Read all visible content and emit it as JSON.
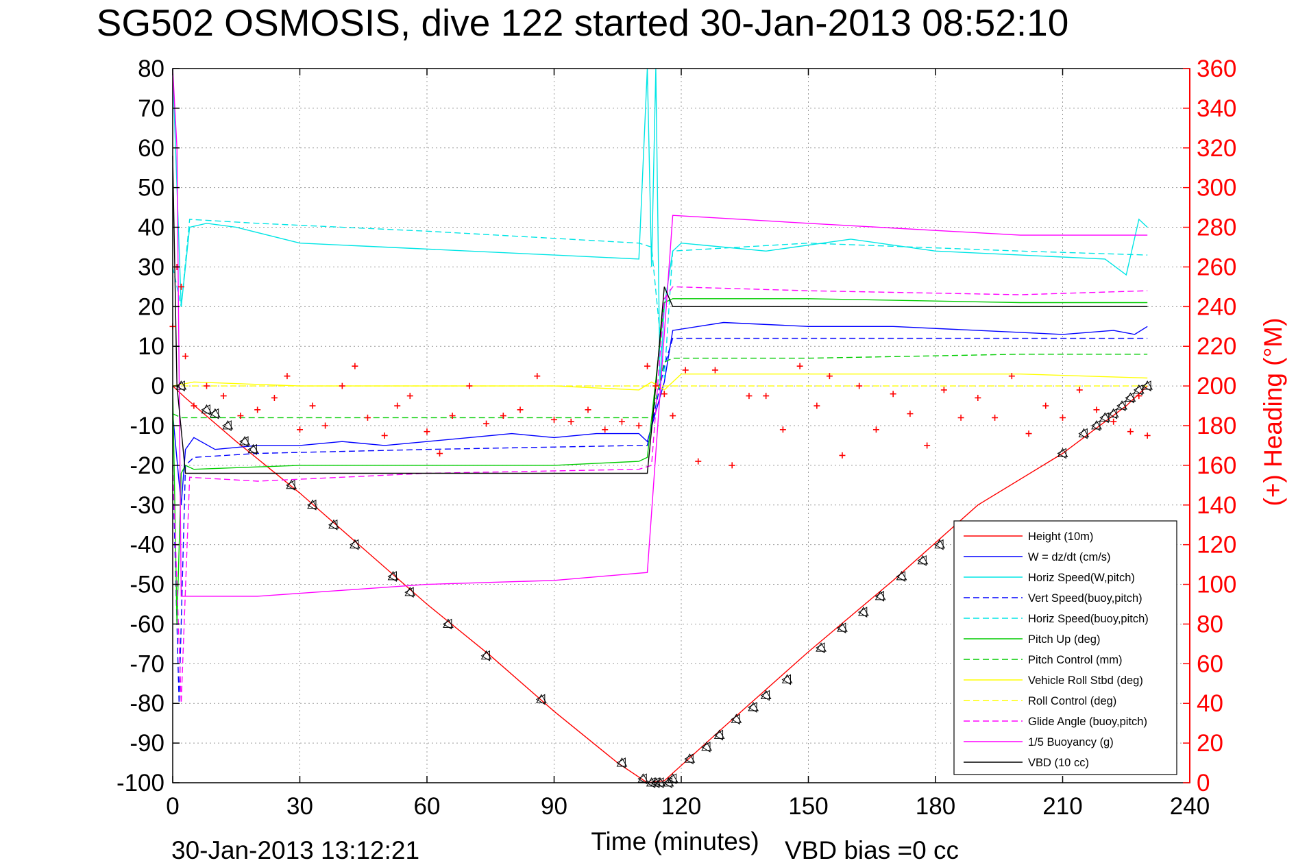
{
  "chart_data": {
    "type": "line",
    "title": "SG502 OSMOSIS, dive 122 started 30-Jan-2013 08:52:10",
    "xlabel": "Time (minutes)",
    "ylabel": "",
    "y2label": "(+) Heading (°M)",
    "xlim": [
      0,
      240
    ],
    "ylim": [
      -100,
      80
    ],
    "y2lim": [
      0,
      360
    ],
    "x_ticks": [
      0,
      30,
      60,
      90,
      120,
      150,
      180,
      210,
      240
    ],
    "y_ticks": [
      80,
      70,
      60,
      50,
      40,
      30,
      20,
      10,
      0,
      -10,
      -20,
      -30,
      -40,
      -50,
      -60,
      -70,
      -80,
      -90,
      -100
    ],
    "y2_ticks": [
      360,
      340,
      320,
      300,
      280,
      260,
      240,
      220,
      200,
      180,
      160,
      140,
      120,
      100,
      80,
      60,
      40,
      20,
      0
    ],
    "grid": true,
    "legend_position": "bottom-right",
    "footer_left": "30-Jan-2013 13:12:21",
    "footer_right": "VBD bias =0 cc",
    "series": [
      {
        "name": "Height (10m)",
        "color": "#ff0000",
        "style": "solid",
        "x": [
          0,
          1,
          3,
          15,
          30,
          45,
          60,
          75,
          90,
          105,
          112,
          116,
          130,
          150,
          170,
          190,
          210,
          225,
          230
        ],
        "y": [
          0,
          -1,
          -3,
          -14,
          -27,
          -41,
          -55,
          -68,
          -82,
          -95,
          -100,
          -99.5,
          -86,
          -67,
          -49,
          -30,
          -17,
          -5,
          0
        ]
      },
      {
        "name": "W = dz/dt (cm/s)",
        "color": "#0000ff",
        "style": "solid",
        "x": [
          0,
          2,
          3,
          5,
          10,
          20,
          30,
          40,
          50,
          60,
          70,
          80,
          90,
          100,
          110,
          112,
          116,
          118,
          130,
          150,
          170,
          190,
          210,
          222,
          227,
          230
        ],
        "y": [
          -7,
          -30,
          -16,
          -13,
          -16,
          -15,
          -15,
          -14,
          -15,
          -14,
          -13,
          -12,
          -13,
          -12,
          -12,
          -14,
          1,
          14,
          16,
          15,
          15,
          14,
          13,
          14,
          13,
          15
        ]
      },
      {
        "name": "Horiz Speed(W,pitch)",
        "color": "#00e5e5",
        "style": "solid",
        "x": [
          0,
          2,
          4,
          8,
          15,
          30,
          50,
          70,
          90,
          110,
          112,
          113,
          114,
          115,
          116,
          118,
          120,
          140,
          160,
          180,
          200,
          220,
          225,
          228,
          230
        ],
        "y": [
          80,
          20,
          40,
          41,
          40,
          36,
          35,
          34,
          33,
          32,
          82,
          30,
          82,
          0,
          20,
          34,
          36,
          34,
          37,
          34,
          33,
          32,
          28,
          42,
          40
        ]
      },
      {
        "name": "Vert Speed(buoy,pitch)",
        "color": "#0000ff",
        "style": "dashed",
        "x": [
          0,
          1.5,
          3,
          5,
          20,
          60,
          110,
          112,
          116,
          118,
          150,
          200,
          230
        ],
        "y": [
          -20,
          -80,
          -20,
          -18,
          -17,
          -16,
          -15,
          -15,
          5,
          12,
          12,
          12,
          12
        ]
      },
      {
        "name": "Horiz Speed(buoy,pitch)",
        "color": "#00e5e5",
        "style": "dashed",
        "x": [
          0,
          2,
          4,
          20,
          60,
          110,
          113,
          116,
          118,
          150,
          200,
          230
        ],
        "y": [
          30,
          20,
          42,
          41,
          39,
          36,
          35,
          2,
          34,
          36,
          34,
          33
        ]
      },
      {
        "name": "Pitch Up (deg)",
        "color": "#00cc00",
        "style": "solid",
        "x": [
          0,
          1,
          2,
          3,
          5,
          30,
          60,
          90,
          110,
          112,
          116,
          118,
          150,
          200,
          230
        ],
        "y": [
          0,
          -60,
          -22,
          -20,
          -21,
          -20,
          -20,
          -20,
          -19,
          -18,
          21,
          22,
          22,
          21,
          21
        ]
      },
      {
        "name": "Pitch Control (mm)",
        "color": "#00cc00",
        "style": "dashed",
        "x": [
          0,
          2,
          20,
          110,
          113,
          116,
          118,
          150,
          200,
          230
        ],
        "y": [
          -7,
          -8,
          -8,
          -8,
          -8,
          6,
          7,
          7,
          8,
          8
        ]
      },
      {
        "name": "Vehicle Roll Stbd (deg)",
        "color": "#ffff00",
        "style": "solid",
        "x": [
          0,
          5,
          30,
          60,
          90,
          110,
          113,
          116,
          120,
          150,
          200,
          230
        ],
        "y": [
          0,
          1,
          0,
          0,
          0,
          -1,
          1,
          -1,
          3,
          3,
          3,
          2
        ]
      },
      {
        "name": "Roll Control (deg)",
        "color": "#ffff00",
        "style": "dashed",
        "x": [
          0,
          5,
          60,
          112,
          116,
          150,
          230
        ],
        "y": [
          0,
          0,
          0,
          0,
          0,
          0,
          0
        ]
      },
      {
        "name": "Glide Angle (buoy,pitch)",
        "color": "#ff00ff",
        "style": "dashed",
        "x": [
          0,
          2,
          4,
          20,
          60,
          110,
          113,
          116,
          118,
          150,
          200,
          230
        ],
        "y": [
          -20,
          -80,
          -23,
          -24,
          -22,
          -21,
          -20,
          22,
          25,
          24,
          23,
          24
        ]
      },
      {
        "name": "1/5 Buoyancy (g)",
        "color": "#ff00ff",
        "style": "solid",
        "x": [
          0,
          1,
          2,
          3,
          20,
          60,
          90,
          112,
          118,
          150,
          200,
          230
        ],
        "y": [
          82,
          60,
          -53,
          -53,
          -53,
          -50,
          -49,
          -47,
          43,
          41,
          38,
          38
        ]
      },
      {
        "name": "VBD (10 cc)",
        "color": "#000000",
        "style": "solid",
        "x": [
          0,
          1,
          3,
          20,
          112,
          114,
          116,
          118,
          230
        ],
        "y": [
          58,
          0,
          -22,
          -22,
          -22,
          0,
          25,
          20,
          20
        ]
      }
    ],
    "heading_series": {
      "name": "(+) Heading (°M)",
      "color": "#ff0000",
      "marker": "+",
      "x": [
        0,
        1,
        2,
        3,
        5,
        8,
        12,
        16,
        20,
        24,
        27,
        30,
        33,
        36,
        40,
        43,
        46,
        50,
        53,
        56,
        60,
        63,
        66,
        70,
        74,
        78,
        82,
        86,
        90,
        94,
        98,
        102,
        106,
        110,
        112,
        114,
        116,
        118,
        121,
        124,
        128,
        132,
        136,
        140,
        144,
        148,
        152,
        155,
        158,
        162,
        166,
        170,
        174,
        178,
        182,
        186,
        190,
        194,
        198,
        202,
        206,
        210,
        214,
        218,
        222,
        226,
        228,
        230
      ],
      "y": [
        230,
        260,
        250,
        215,
        190,
        200,
        195,
        185,
        188,
        194,
        205,
        178,
        190,
        180,
        200,
        210,
        184,
        175,
        190,
        195,
        177,
        166,
        185,
        200,
        181,
        185,
        188,
        205,
        183,
        182,
        188,
        178,
        182,
        180,
        210,
        200,
        196,
        185,
        208,
        162,
        208,
        160,
        195,
        195,
        178,
        210,
        190,
        205,
        165,
        200,
        178,
        196,
        186,
        170,
        198,
        184,
        194,
        184,
        205,
        176,
        190,
        184,
        198,
        188,
        182,
        177,
        195,
        175
      ]
    },
    "vbd_markers": {
      "name": "",
      "color": "#000000",
      "marker": "triangle",
      "x": [
        2,
        8,
        10,
        13,
        17,
        19,
        28,
        33,
        38,
        43,
        52,
        56,
        65,
        74,
        87,
        106,
        111,
        113,
        114,
        115,
        117,
        118,
        122,
        126,
        129,
        133,
        137,
        140,
        145,
        153,
        158,
        163,
        167,
        172,
        177,
        181,
        210,
        215,
        218,
        220,
        222,
        224,
        226,
        228,
        230
      ],
      "y": [
        0,
        -6,
        -7,
        -10,
        -14,
        -16,
        -25,
        -30,
        -35,
        -40,
        -48,
        -52,
        -60,
        -68,
        -79,
        -95,
        -99,
        -100,
        -100,
        -100,
        -100,
        -99,
        -94,
        -91,
        -88,
        -84,
        -81,
        -78,
        -74,
        -66,
        -61,
        -57,
        -53,
        -48,
        -44,
        -40,
        -17,
        -12,
        -10,
        -8,
        -7,
        -5,
        -3,
        -1,
        0
      ]
    }
  }
}
